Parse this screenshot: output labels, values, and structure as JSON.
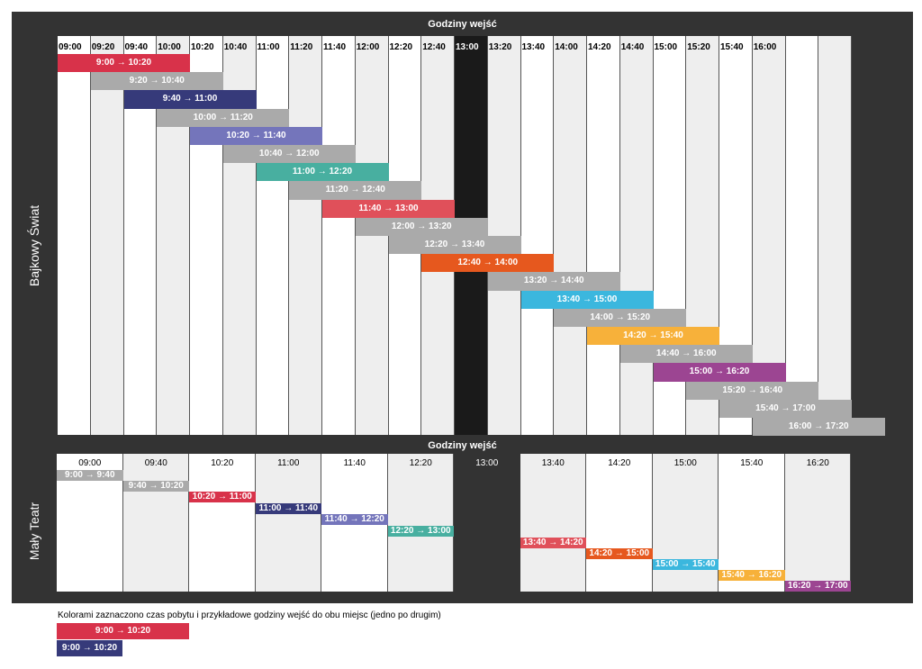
{
  "top": {
    "title": "Godziny wejść",
    "side_label": "Bajkowy Świat",
    "columns": [
      "09:00",
      "09:20",
      "09:40",
      "10:00",
      "10:20",
      "10:40",
      "11:00",
      "11:20",
      "11:40",
      "12:00",
      "12:20",
      "12:40",
      "13:00",
      "13:20",
      "13:40",
      "14:00",
      "14:20",
      "14:40",
      "15:00",
      "15:20",
      "15:40",
      "16:00",
      "",
      ""
    ],
    "dark_column_index": 12,
    "bars": [
      {
        "label": "9:00 → 10:20",
        "start": 0,
        "len": 4,
        "color": "#d8324a"
      },
      {
        "label": "9:20 → 10:40",
        "start": 1,
        "len": 4,
        "color": "#aaaaaa"
      },
      {
        "label": "9:40 → 11:00",
        "start": 2,
        "len": 4,
        "color": "#363a7a"
      },
      {
        "label": "10:00 → 11:20",
        "start": 3,
        "len": 4,
        "color": "#aaaaaa"
      },
      {
        "label": "10:20 → 11:40",
        "start": 4,
        "len": 4,
        "color": "#7475bb"
      },
      {
        "label": "10:40 → 12:00",
        "start": 5,
        "len": 4,
        "color": "#aaaaaa"
      },
      {
        "label": "11:00 → 12:20",
        "start": 6,
        "len": 4,
        "color": "#48afa0"
      },
      {
        "label": "11:20 → 12:40",
        "start": 7,
        "len": 4,
        "color": "#aaaaaa"
      },
      {
        "label": "11:40 → 13:00",
        "start": 8,
        "len": 4,
        "color": "#e0505a"
      },
      {
        "label": "12:00 → 13:20",
        "start": 9,
        "len": 4,
        "color": "#aaaaaa"
      },
      {
        "label": "12:20 → 13:40",
        "start": 10,
        "len": 4,
        "color": "#aaaaaa"
      },
      {
        "label": "12:40 → 14:00",
        "start": 11,
        "len": 4,
        "color": "#e6581e"
      },
      {
        "label": "13:20 → 14:40",
        "start": 13,
        "len": 4,
        "color": "#aaaaaa"
      },
      {
        "label": "13:40 → 15:00",
        "start": 14,
        "len": 4,
        "color": "#3bb7de"
      },
      {
        "label": "14:00 → 15:20",
        "start": 15,
        "len": 4,
        "color": "#aaaaaa"
      },
      {
        "label": "14:20 → 15:40",
        "start": 16,
        "len": 4,
        "color": "#f7b13a"
      },
      {
        "label": "14:40 → 16:00",
        "start": 17,
        "len": 4,
        "color": "#aaaaaa"
      },
      {
        "label": "15:00 → 16:20",
        "start": 18,
        "len": 4,
        "color": "#9c4592"
      },
      {
        "label": "15:20 → 16:40",
        "start": 19,
        "len": 4,
        "color": "#aaaaaa"
      },
      {
        "label": "15:40 → 17:00",
        "start": 20,
        "len": 4,
        "color": "#aaaaaa"
      },
      {
        "label": "16:00 → 17:20",
        "start": 21,
        "len": 4,
        "color": "#aaaaaa"
      }
    ]
  },
  "bottom": {
    "title": "Godziny wejść",
    "side_label": "Mały Teatr",
    "columns": [
      "09:00",
      "09:40",
      "10:20",
      "11:00",
      "11:40",
      "12:20",
      "13:00",
      "13:40",
      "14:20",
      "15:00",
      "15:40",
      "16:20"
    ],
    "dark_column_index": 6,
    "bars": [
      {
        "label": "9:00 → 9:40",
        "start": 0,
        "len": 1,
        "color": "#aaaaaa"
      },
      {
        "label": "9:40 → 10:20",
        "start": 1,
        "len": 1,
        "color": "#aaaaaa"
      },
      {
        "label": "10:20 → 11:00",
        "start": 2,
        "len": 1,
        "color": "#d8324a"
      },
      {
        "label": "11:00 → 11:40",
        "start": 3,
        "len": 1,
        "color": "#363a7a"
      },
      {
        "label": "11:40 → 12:20",
        "start": 4,
        "len": 1,
        "color": "#7475bb"
      },
      {
        "label": "12:20 → 13:00",
        "start": 5,
        "len": 1,
        "color": "#48afa0"
      },
      {
        "label": "13:40 → 14:20",
        "start": 7,
        "len": 1,
        "color": "#e0505a"
      },
      {
        "label": "14:20 → 15:00",
        "start": 8,
        "len": 1,
        "color": "#e6581e"
      },
      {
        "label": "15:00 → 15:40",
        "start": 9,
        "len": 1,
        "color": "#3bb7de"
      },
      {
        "label": "15:40 → 16:20",
        "start": 10,
        "len": 1,
        "color": "#f7b13a"
      },
      {
        "label": "16:20 → 17:00",
        "start": 11,
        "len": 1,
        "color": "#9c4592"
      }
    ]
  },
  "legend": {
    "caption": "Kolorami zaznaczono czas pobytu i przykładowe godziny wejść do obu miejsc (jedno po drugim)",
    "bars": [
      {
        "label": "9:00 → 10:20",
        "color": "#d8324a"
      },
      {
        "label": "9:00 → 10:20",
        "color": "#363a7a"
      }
    ]
  }
}
